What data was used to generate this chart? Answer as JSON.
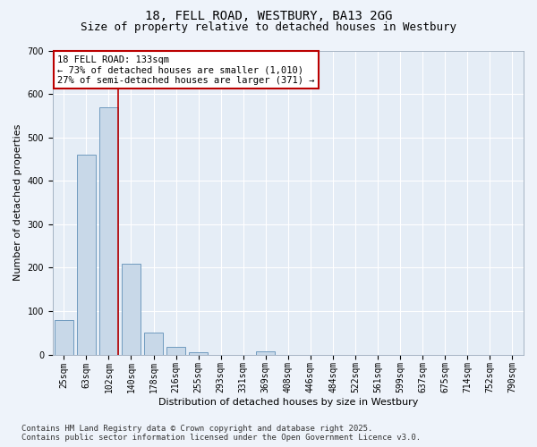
{
  "title": "18, FELL ROAD, WESTBURY, BA13 2GG",
  "subtitle": "Size of property relative to detached houses in Westbury",
  "xlabel": "Distribution of detached houses by size in Westbury",
  "ylabel": "Number of detached properties",
  "categories": [
    "25sqm",
    "63sqm",
    "102sqm",
    "140sqm",
    "178sqm",
    "216sqm",
    "255sqm",
    "293sqm",
    "331sqm",
    "369sqm",
    "408sqm",
    "446sqm",
    "484sqm",
    "522sqm",
    "561sqm",
    "599sqm",
    "637sqm",
    "675sqm",
    "714sqm",
    "752sqm",
    "790sqm"
  ],
  "values": [
    80,
    460,
    570,
    210,
    50,
    18,
    5,
    0,
    0,
    7,
    0,
    0,
    0,
    0,
    0,
    0,
    0,
    0,
    0,
    0,
    0
  ],
  "bar_color": "#c8d8e8",
  "bar_edge_color": "#6090b8",
  "ylim": [
    0,
    700
  ],
  "yticks": [
    0,
    100,
    200,
    300,
    400,
    500,
    600,
    700
  ],
  "vline_pos": 2.43,
  "vline_color": "#bb0000",
  "annotation_line1": "18 FELL ROAD: 133sqm",
  "annotation_line2": "← 73% of detached houses are smaller (1,010)",
  "annotation_line3": "27% of semi-detached houses are larger (371) →",
  "annotation_box_facecolor": "#ffffff",
  "annotation_box_edgecolor": "#bb0000",
  "footer_line1": "Contains HM Land Registry data © Crown copyright and database right 2025.",
  "footer_line2": "Contains public sector information licensed under the Open Government Licence v3.0.",
  "bg_color": "#eef3fa",
  "plot_bg_color": "#e5edf6",
  "grid_color": "#ffffff",
  "title_fontsize": 10,
  "subtitle_fontsize": 9,
  "axis_label_fontsize": 8,
  "tick_fontsize": 7,
  "annotation_fontsize": 7.5,
  "footer_fontsize": 6.5
}
